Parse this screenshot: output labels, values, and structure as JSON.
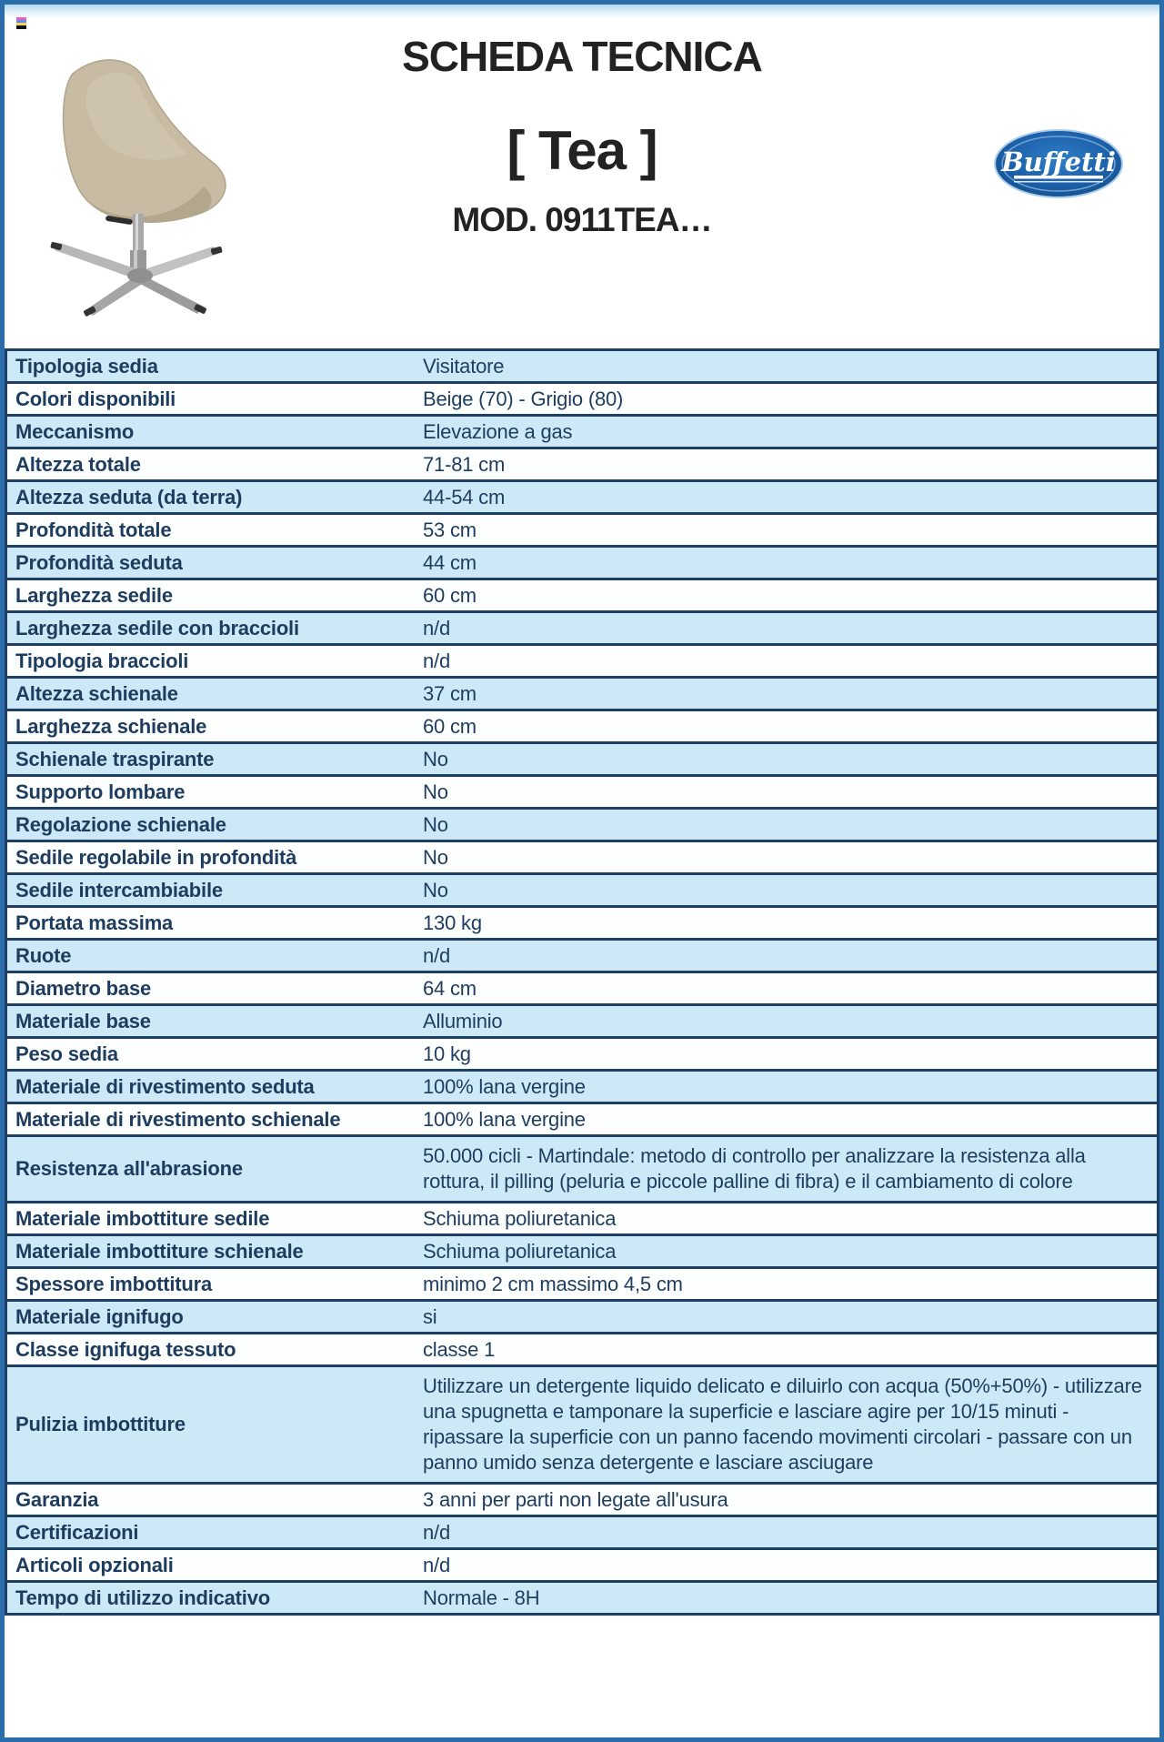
{
  "header": {
    "title": "SCHEDA TECNICA",
    "product": "[ Tea ]",
    "model": "MOD. 0911TEA…",
    "brand": "Buffetti"
  },
  "icons": {
    "chair_image": "chair-product-photo",
    "color_bar": "color-bar-icon",
    "brand_logo": "buffetti-oval-logo"
  },
  "colors": {
    "page_border": "#2b6cab",
    "table_border": "#1c3f63",
    "row_blue": "#cde9f7",
    "row_white": "#fdfefe",
    "text_navy": "#1e3c5e",
    "title_text": "#222222",
    "logo_blue": "#1d61ab",
    "chair_beige": "#c7bca3"
  },
  "table": {
    "rows": [
      {
        "label": "Tipologia sedia",
        "value": "Visitatore"
      },
      {
        "label": "Colori disponibili",
        "value": "Beige (70) - Grigio (80)"
      },
      {
        "label": "Meccanismo",
        "value": "Elevazione a gas"
      },
      {
        "label": "Altezza totale",
        "value": "71-81 cm"
      },
      {
        "label": "Altezza seduta (da terra)",
        "value": "44-54 cm"
      },
      {
        "label": "Profondità totale",
        "value": "53 cm"
      },
      {
        "label": "Profondità seduta",
        "value": "44 cm"
      },
      {
        "label": "Larghezza sedile",
        "value": "60 cm"
      },
      {
        "label": "Larghezza sedile con braccioli",
        "value": "n/d"
      },
      {
        "label": "Tipologia braccioli",
        "value": "n/d"
      },
      {
        "label": "Altezza schienale",
        "value": "37 cm"
      },
      {
        "label": "Larghezza schienale",
        "value": "60 cm"
      },
      {
        "label": "Schienale traspirante",
        "value": "No"
      },
      {
        "label": "Supporto lombare",
        "value": "No"
      },
      {
        "label": "Regolazione schienale",
        "value": "No"
      },
      {
        "label": "Sedile regolabile in profondità",
        "value": "No"
      },
      {
        "label": "Sedile intercambiabile",
        "value": "No"
      },
      {
        "label": "Portata massima",
        "value": "130 kg"
      },
      {
        "label": "Ruote",
        "value": "n/d"
      },
      {
        "label": "Diametro base",
        "value": "64 cm"
      },
      {
        "label": "Materiale base",
        "value": "Alluminio"
      },
      {
        "label": "Peso sedia",
        "value": "10 kg"
      },
      {
        "label": "Materiale di rivestimento seduta",
        "value": "100% lana vergine"
      },
      {
        "label": "Materiale di rivestimento schienale",
        "value": "100% lana vergine"
      },
      {
        "label": "Resistenza all'abrasione",
        "value": "50.000 cicli - Martindale: metodo di controllo per analizzare la resistenza alla rottura, il pilling (peluria e piccole palline di fibra) e il cambiamento di colore"
      },
      {
        "label": "Materiale imbottiture sedile",
        "value": "Schiuma poliuretanica"
      },
      {
        "label": "Materiale imbottiture schienale",
        "value": "Schiuma poliuretanica"
      },
      {
        "label": "Spessore imbottitura",
        "value": "minimo 2 cm massimo 4,5 cm"
      },
      {
        "label": "Materiale ignifugo",
        "value": "si"
      },
      {
        "label": "Classe ignifuga tessuto",
        "value": "classe 1"
      },
      {
        "label": "Pulizia imbottiture",
        "value": "Utilizzare un detergente liquido delicato e diluirlo con acqua (50%+50%) - utilizzare una spugnetta e tamponare la superficie e lasciare agire per 10/15 minuti - ripassare la superficie con un panno facendo movimenti circolari - passare con un panno umido senza detergente e lasciare asciugare"
      },
      {
        "label": "Garanzia",
        "value": "3 anni per parti non legate all'usura"
      },
      {
        "label": "Certificazioni",
        "value": "n/d"
      },
      {
        "label": "Articoli opzionali",
        "value": "n/d"
      },
      {
        "label": "Tempo di utilizzo indicativo",
        "value": "Normale - 8H"
      }
    ]
  }
}
